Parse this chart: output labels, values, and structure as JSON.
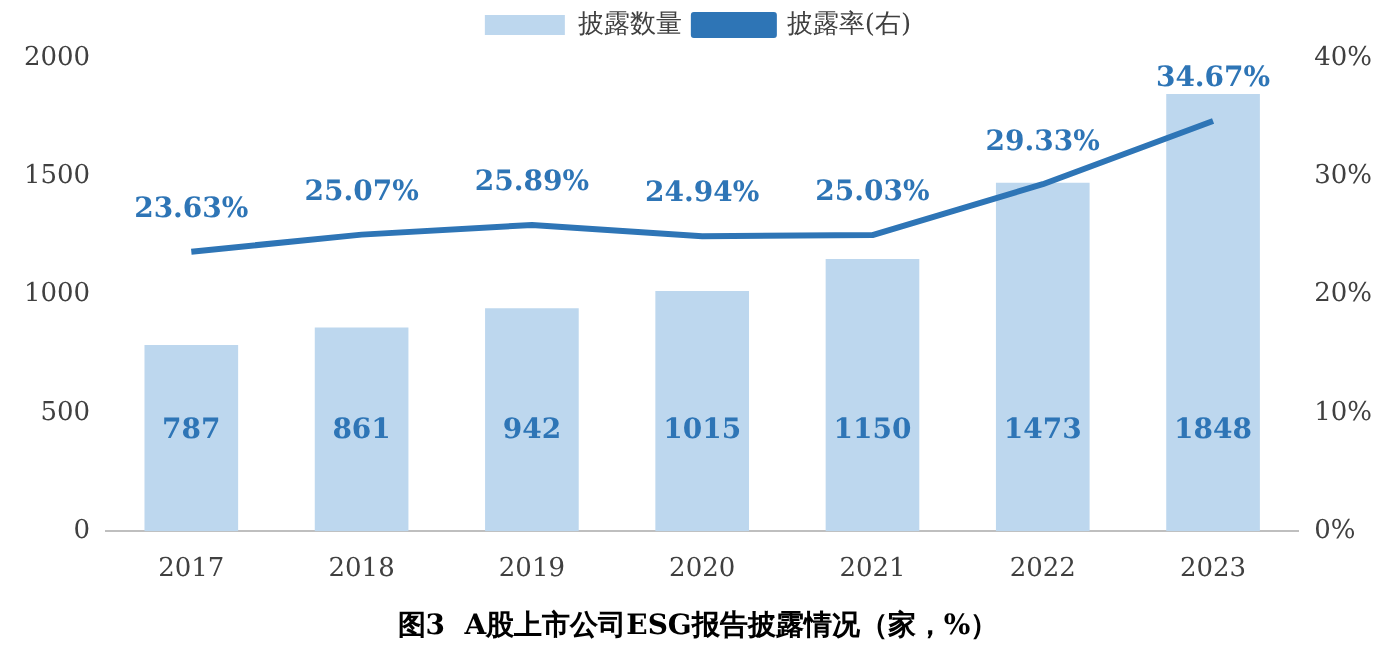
{
  "chart_data": {
    "type": "bar",
    "title": "图3  A股上市公司ESG报告披露情况（家，%）",
    "categories": [
      "2017",
      "2018",
      "2019",
      "2020",
      "2021",
      "2022",
      "2023"
    ],
    "series": [
      {
        "name": "披露数量",
        "color": "#bdd7ee",
        "values": [
          787,
          861,
          942,
          1015,
          1150,
          1473,
          1848
        ],
        "value_labels": [
          "787",
          "861",
          "942",
          "1015",
          "1150",
          "1473",
          "1848"
        ]
      },
      {
        "name": "披露率(右)",
        "type": "line",
        "axis": "y2",
        "color": "#2e75b6",
        "values": [
          23.63,
          25.07,
          25.89,
          24.94,
          25.03,
          29.33,
          34.67
        ],
        "value_labels": [
          "23.63%",
          "25.07%",
          "25.89%",
          "24.94%",
          "25.03%",
          "29.33%",
          "34.67%"
        ]
      }
    ],
    "ylim": [
      0,
      2000
    ],
    "yticks": [
      0,
      500,
      1000,
      1500,
      2000
    ],
    "y2lim": [
      0,
      40
    ],
    "y2ticks": [
      {
        "value": 0,
        "label": "0%"
      },
      {
        "value": 10,
        "label": "10%"
      },
      {
        "value": 20,
        "label": "20%"
      },
      {
        "value": 30,
        "label": "30%"
      },
      {
        "value": 40,
        "label": "40%"
      }
    ],
    "legend": "top",
    "grid": false,
    "marker": "none",
    "line_style": "solid"
  }
}
